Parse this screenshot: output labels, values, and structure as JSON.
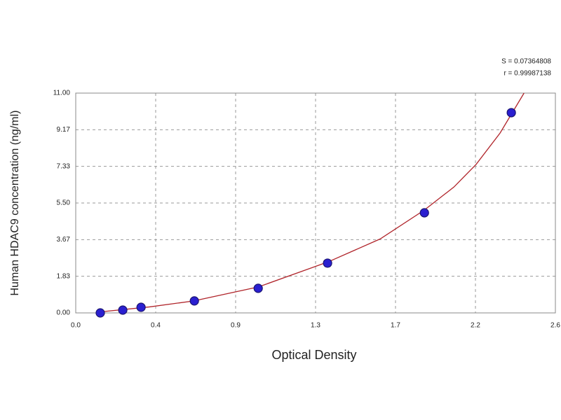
{
  "chart_data": {
    "type": "scatter",
    "x_label": "Optical Density",
    "y_label": "Human HDAC9 concentration (ng/ml)",
    "annotations": [
      "S = 0.07364808",
      "r = 0.99987138"
    ],
    "x": [
      0.133,
      0.255,
      0.354,
      0.643,
      0.989,
      1.365,
      1.89,
      2.361
    ],
    "values": [
      0,
      0.14,
      0.28,
      0.6,
      1.23,
      2.49,
      5.01,
      10.02
    ],
    "color": "#2a1fd0",
    "fit": {
      "color": "#b0242a",
      "x": [
        0.12,
        0.4,
        0.64,
        0.99,
        1.37,
        1.65,
        1.89,
        2.05,
        2.17,
        2.3,
        2.43
      ],
      "values": [
        0.04,
        0.3,
        0.6,
        1.3,
        2.56,
        3.7,
        5.15,
        6.3,
        7.43,
        9.0,
        11.0
      ]
    },
    "xlim": [
      0,
      2.6
    ],
    "xticks": [
      {
        "value": 0,
        "label": "0.0"
      },
      {
        "value": 0.4333,
        "label": "0.4"
      },
      {
        "value": 0.8667,
        "label": "0.9"
      },
      {
        "value": 1.3,
        "label": "1.3"
      },
      {
        "value": 1.7333,
        "label": "1.7"
      },
      {
        "value": 2.1667,
        "label": "2.2"
      },
      {
        "value": 2.6,
        "label": "2.6"
      }
    ],
    "ylim": [
      0,
      11
    ],
    "yticks": [
      {
        "value": 0,
        "label": "0.00"
      },
      {
        "value": 1.8333,
        "label": "1.83"
      },
      {
        "value": 3.6667,
        "label": "3.67"
      },
      {
        "value": 5.5,
        "label": "5.50"
      },
      {
        "value": 7.3333,
        "label": "7.33"
      },
      {
        "value": 9.1667,
        "label": "9.17"
      },
      {
        "value": 11,
        "label": "11.00"
      }
    ],
    "grid": true
  }
}
